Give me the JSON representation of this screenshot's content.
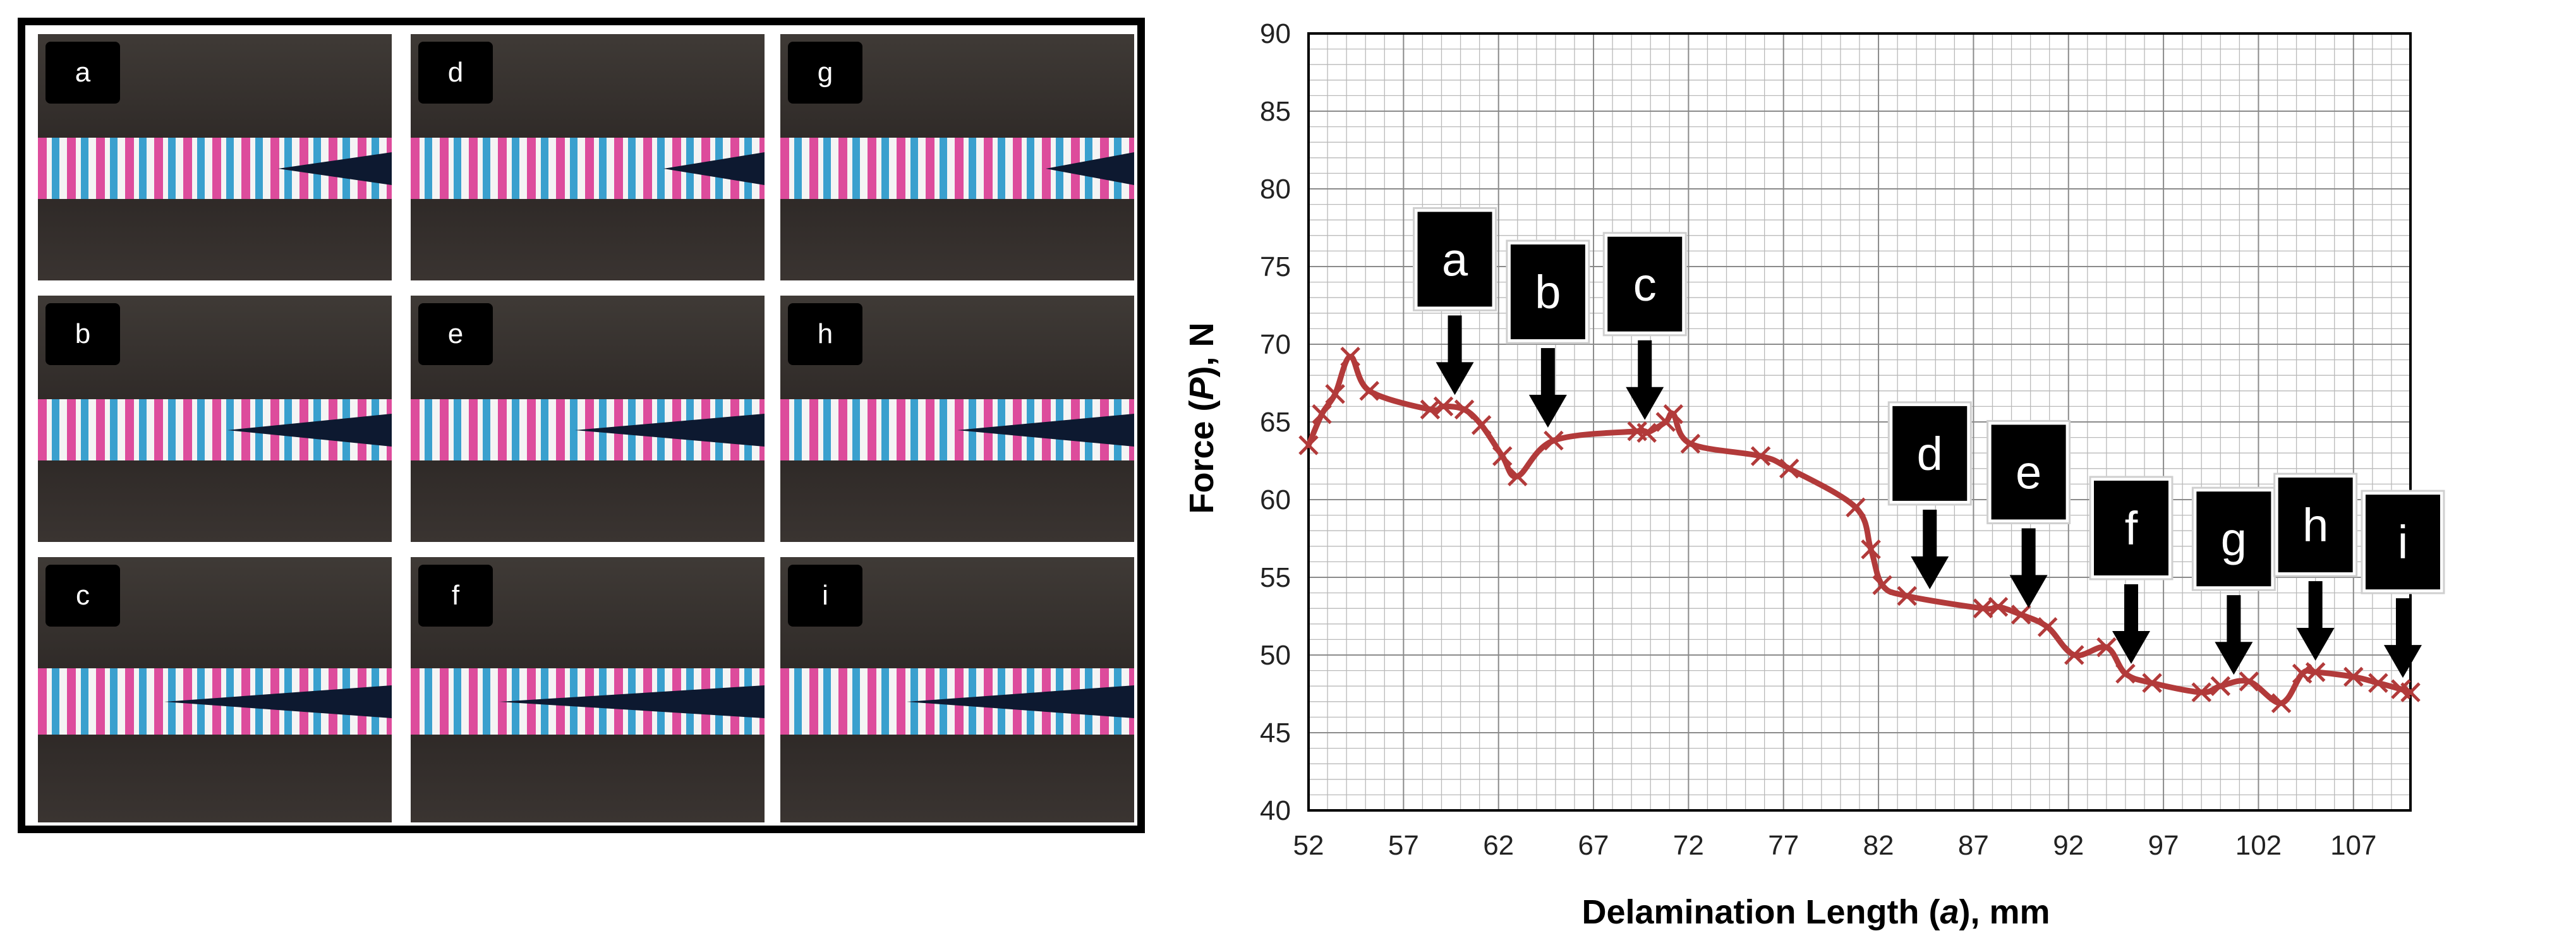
{
  "photos": {
    "labels": [
      "a",
      "d",
      "g",
      "b",
      "e",
      "h",
      "c",
      "f",
      "i"
    ]
  },
  "chart_data": {
    "type": "line",
    "title": "",
    "xlabel_prefix": "Delamination Length (",
    "xlabel_var": "a",
    "xlabel_suffix": "), mm",
    "ylabel_prefix": "Force (",
    "ylabel_var": "P",
    "ylabel_suffix": "), N",
    "xlim": [
      52,
      110
    ],
    "ylim": [
      40,
      90
    ],
    "x_ticks": [
      "52",
      "57",
      "62",
      "67",
      "72",
      "77",
      "82",
      "87",
      "92",
      "97",
      "102",
      "107"
    ],
    "y_ticks": [
      "40",
      "45",
      "50",
      "55",
      "60",
      "65",
      "70",
      "75",
      "80",
      "85",
      "90"
    ],
    "grid": true,
    "series": [
      {
        "color": "#b23a3a",
        "marker": "x",
        "x": [
          52.0,
          52.7,
          53.4,
          54.2,
          55.2,
          58.4,
          59.1,
          60.2,
          61.1,
          62.2,
          63.0,
          64.9,
          69.3,
          69.8,
          70.8,
          71.2,
          72.1,
          75.8,
          77.3,
          80.8,
          81.6,
          82.2,
          83.5,
          87.5,
          88.3,
          89.5,
          90.9,
          92.3,
          94.0,
          95.0,
          96.4,
          99.0,
          100.0,
          101.5,
          103.2,
          104.3,
          105.0,
          107.0,
          108.3,
          109.5,
          110.0
        ],
        "y": [
          63.5,
          65.5,
          66.8,
          69.2,
          67.0,
          65.8,
          66.0,
          65.8,
          64.8,
          62.8,
          61.5,
          63.8,
          64.4,
          64.3,
          65.0,
          65.5,
          63.6,
          62.8,
          62.0,
          59.5,
          56.8,
          54.5,
          53.8,
          53.0,
          53.1,
          52.6,
          51.8,
          50.0,
          50.5,
          48.8,
          48.2,
          47.6,
          48.0,
          48.3,
          46.9,
          48.8,
          48.9,
          48.6,
          48.2,
          47.8,
          47.6
        ]
      }
    ],
    "annotations": [
      {
        "text": "a",
        "x": 59.7,
        "y": 66.0
      },
      {
        "text": "b",
        "x": 64.6,
        "y": 63.9
      },
      {
        "text": "c",
        "x": 69.7,
        "y": 64.4
      },
      {
        "text": "d",
        "x": 84.7,
        "y": 53.5
      },
      {
        "text": "e",
        "x": 89.9,
        "y": 52.3
      },
      {
        "text": "f",
        "x": 95.3,
        "y": 48.7
      },
      {
        "text": "g",
        "x": 100.7,
        "y": 48.0
      },
      {
        "text": "h",
        "x": 105.0,
        "y": 48.9
      },
      {
        "text": "i",
        "x": 109.6,
        "y": 47.8
      }
    ]
  }
}
